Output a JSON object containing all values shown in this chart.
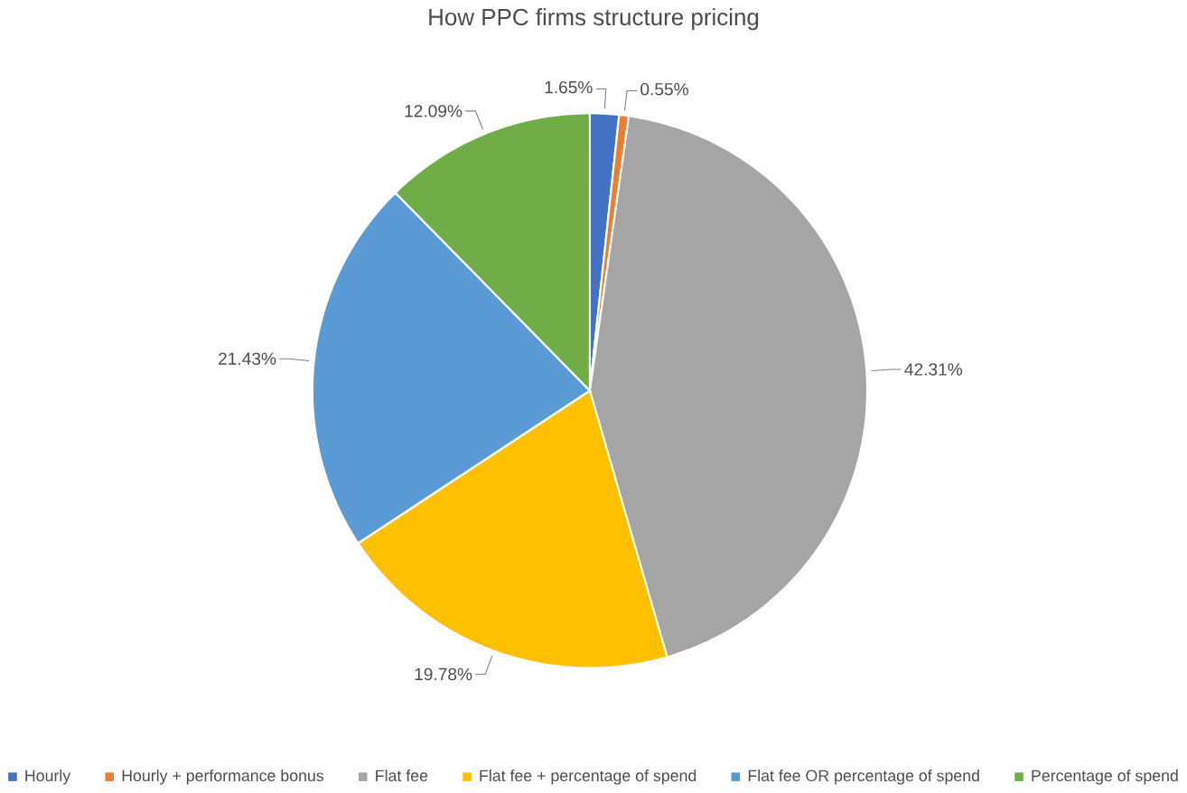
{
  "chart_data": {
    "type": "pie",
    "title": "How PPC firms structure pricing",
    "categories": [
      "Hourly",
      "Hourly + performance bonus",
      "Flat fee",
      "Flat fee + percentage of spend",
      "Flat fee OR percentage of spend",
      "Percentage of spend"
    ],
    "values": [
      1.65,
      0.55,
      42.31,
      19.78,
      21.43,
      12.09
    ],
    "colors": [
      "#4472c4",
      "#ed7d31",
      "#a5a5a5",
      "#ffc000",
      "#5b9bd5",
      "#70ad47"
    ],
    "value_labels": [
      "1.65%",
      "0.55%",
      "42.31%",
      "19.78%",
      "21.43%",
      "12.09%"
    ],
    "legend": "bottom"
  }
}
